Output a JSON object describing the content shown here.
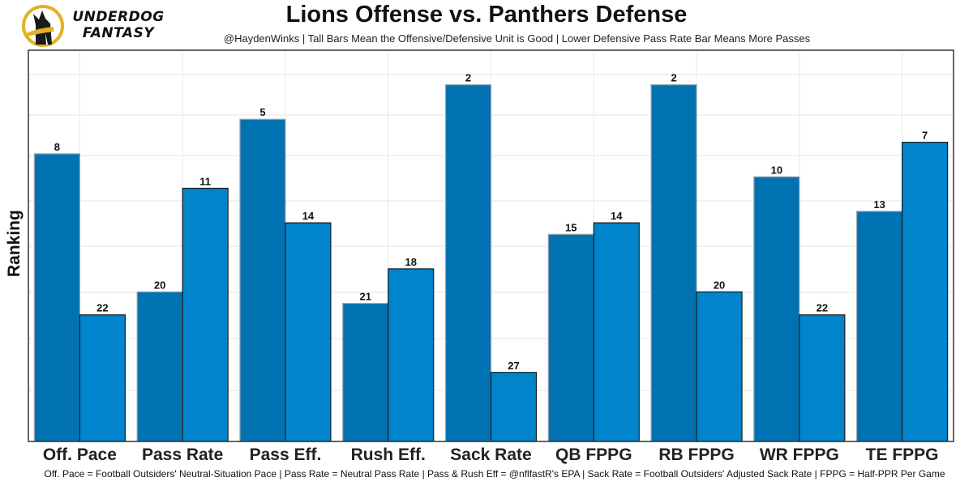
{
  "header": {
    "logo_line1": "UNDERDOG",
    "logo_line2": "FANTASY",
    "title": "Lions Offense vs. Panthers Defense",
    "subtitle": "@HaydenWinks | Tall Bars Mean the Offensive/Defensive Unit is Good | Lower Defensive Pass Rate Bar Means More Passes"
  },
  "footer": {
    "caption": "Off. Pace = Football Outsiders' Neutral-Situation Pace | Pass Rate = Neutral Pass Rate | Pass & Rush Eff = @nflfastR's EPA | Sack Rate = Football Outsiders' Adjusted Sack Rate | FPPG = Half-PPR Per Game"
  },
  "colors": {
    "offense": "#0072B2",
    "defense": "#0085CC",
    "logo_ring": "#E2B124"
  },
  "chart_data": {
    "type": "bar",
    "title": "Lions Offense vs. Panthers Defense",
    "xlabel": "",
    "ylabel": "Ranking",
    "y_reversed": true,
    "ylim": [
      33,
      -1
    ],
    "grid": true,
    "categories": [
      "Off. Pace",
      "Pass Rate",
      "Pass Eff.",
      "Rush Eff.",
      "Sack Rate",
      "QB FPPG",
      "RB FPPG",
      "WR FPPG",
      "TE FPPG"
    ],
    "series": [
      {
        "name": "Lions Offense",
        "values": [
          8,
          20,
          5,
          21,
          2,
          15,
          2,
          10,
          13
        ]
      },
      {
        "name": "Panthers Defense",
        "values": [
          22,
          11,
          14,
          18,
          27,
          14,
          20,
          22,
          7
        ]
      }
    ]
  }
}
